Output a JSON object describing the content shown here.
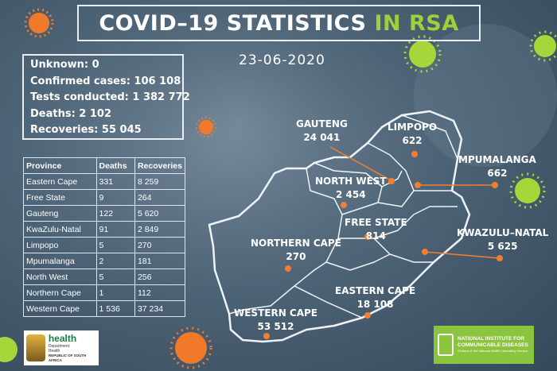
{
  "title": {
    "main": "COVID–19 STATISTICS",
    "highlight": "IN RSA"
  },
  "date": "23-06-2020",
  "summary": {
    "unknown": "Unknown: 0",
    "confirmed": "Confirmed cases: 106 108",
    "tests": "Tests conducted: 1 382 772",
    "deaths": "Deaths: 2 102",
    "recoveries": "Recoveries: 55 045"
  },
  "table": {
    "headers": [
      "Province",
      "Deaths",
      "Recoveries"
    ],
    "rows": [
      [
        "Eastern Cape",
        "331",
        "8 259"
      ],
      [
        "Free State",
        "9",
        "264"
      ],
      [
        "Gauteng",
        "122",
        "5 620"
      ],
      [
        "KwaZulu-Natal",
        "91",
        "2 849"
      ],
      [
        "Limpopo",
        "5",
        "270"
      ],
      [
        "Mpumalanga",
        "2",
        "181"
      ],
      [
        "North West",
        "5",
        "256"
      ],
      [
        "Northern Cape",
        "1",
        "112"
      ],
      [
        "Western Cape",
        "1 536",
        "37 234"
      ]
    ]
  },
  "map": {
    "gauteng": {
      "name": "GAUTENG",
      "value": "24 041"
    },
    "limpopo": {
      "name": "LIMPOPO",
      "value": "622"
    },
    "mpumalanga": {
      "name": "MPUMALANGA",
      "value": "662"
    },
    "north_west": {
      "name": "NORTH WEST",
      "value": "2 454"
    },
    "free_state": {
      "name": "FREE STATE",
      "value": "814"
    },
    "kwazulu_natal": {
      "name": "KWAZULU–NATAL",
      "value": "5 625"
    },
    "northern_cape": {
      "name": "NORTHERN CAPE",
      "value": "270"
    },
    "eastern_cape": {
      "name": "EASTERN CAPE",
      "value": "18 108"
    },
    "western_cape": {
      "name": "WESTERN CAPE",
      "value": "53 512"
    }
  },
  "logos": {
    "health": {
      "name": "health",
      "line1": "Department:",
      "line2": "Health",
      "line3": "REPUBLIC OF SOUTH AFRICA"
    },
    "nicd": {
      "line1": "NATIONAL INSTITUTE FOR",
      "line2": "COMMUNICABLE DISEASES",
      "line3": "Division of the National Health Laboratory Service"
    }
  },
  "colors": {
    "accent_green": "#9dd13c",
    "dot_orange": "#f08030",
    "virus_orange": "#f07a2a",
    "virus_green": "#a6d63a"
  }
}
